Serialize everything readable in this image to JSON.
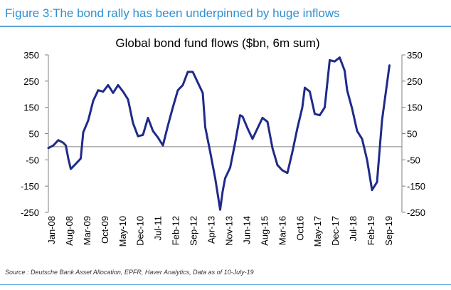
{
  "figure_title": "Figure 3:The bond rally has been underpinned by huge inflows",
  "source_text": "Source : Deutsche Bank Asset Allocation, EPFR, Haver Analytics, Data as of 10-July-19",
  "colors": {
    "figure_title": "#2e8fd0",
    "rules": "#5aa7dc",
    "series_line": "#1f2a8a"
  },
  "chart_data": {
    "type": "line",
    "title": "Global bond fund flows ($bn, 6m sum)",
    "xlabel": "",
    "ylabel": "",
    "ylim": [
      -250,
      350
    ],
    "yticks": [
      350,
      250,
      150,
      50,
      -50,
      -150,
      -250
    ],
    "x_tick_labels": [
      "Jan-08",
      "Aug-08",
      "Mar-09",
      "Oct-09",
      "May-10",
      "Dec-10",
      "Jul-11",
      "Feb-12",
      "Sep-12",
      "Apr-13",
      "Nov-13",
      "Jun-14",
      "Aug-15",
      "Mar-16",
      "Oct16",
      "May-17",
      "Dec-17",
      "Jul-18",
      "Feb-19",
      "Sep-19"
    ],
    "grid": false,
    "zero_line": true,
    "axes": "left and right y-axes with identical scale",
    "series": [
      {
        "values": [
          {
            "x": "2008-01",
            "y": -5
          },
          {
            "x": "2008-03",
            "y": 5
          },
          {
            "x": "2008-05",
            "y": 25
          },
          {
            "x": "2008-07",
            "y": 15
          },
          {
            "x": "2008-08",
            "y": 5
          },
          {
            "x": "2008-09",
            "y": -45
          },
          {
            "x": "2008-10",
            "y": -85
          },
          {
            "x": "2008-12",
            "y": -65
          },
          {
            "x": "2009-02",
            "y": -45
          },
          {
            "x": "2009-03",
            "y": 55
          },
          {
            "x": "2009-05",
            "y": 100
          },
          {
            "x": "2009-07",
            "y": 175
          },
          {
            "x": "2009-09",
            "y": 215
          },
          {
            "x": "2009-11",
            "y": 210
          },
          {
            "x": "2010-01",
            "y": 235
          },
          {
            "x": "2010-03",
            "y": 205
          },
          {
            "x": "2010-05",
            "y": 235
          },
          {
            "x": "2010-07",
            "y": 210
          },
          {
            "x": "2010-09",
            "y": 180
          },
          {
            "x": "2010-11",
            "y": 90
          },
          {
            "x": "2011-01",
            "y": 40
          },
          {
            "x": "2011-03",
            "y": 45
          },
          {
            "x": "2011-05",
            "y": 110
          },
          {
            "x": "2011-07",
            "y": 60
          },
          {
            "x": "2011-09",
            "y": 35
          },
          {
            "x": "2011-11",
            "y": 5
          },
          {
            "x": "2012-01",
            "y": 80
          },
          {
            "x": "2012-03",
            "y": 150
          },
          {
            "x": "2012-05",
            "y": 215
          },
          {
            "x": "2012-07",
            "y": 235
          },
          {
            "x": "2012-09",
            "y": 285
          },
          {
            "x": "2012-11",
            "y": 285
          },
          {
            "x": "2013-01",
            "y": 245
          },
          {
            "x": "2013-03",
            "y": 205
          },
          {
            "x": "2013-04",
            "y": 75
          },
          {
            "x": "2013-06",
            "y": -20
          },
          {
            "x": "2013-08",
            "y": -120
          },
          {
            "x": "2013-10",
            "y": -240
          },
          {
            "x": "2013-11",
            "y": -170
          },
          {
            "x": "2013-12",
            "y": -120
          },
          {
            "x": "2014-02",
            "y": -80
          },
          {
            "x": "2014-04",
            "y": 15
          },
          {
            "x": "2014-06",
            "y": 120
          },
          {
            "x": "2014-07",
            "y": 115
          },
          {
            "x": "2014-09",
            "y": 70
          },
          {
            "x": "2014-11",
            "y": 30
          },
          {
            "x": "2015-01",
            "y": 70
          },
          {
            "x": "2015-03",
            "y": 110
          },
          {
            "x": "2015-05",
            "y": 95
          },
          {
            "x": "2015-07",
            "y": -5
          },
          {
            "x": "2015-09",
            "y": -70
          },
          {
            "x": "2015-11",
            "y": -90
          },
          {
            "x": "2016-01",
            "y": -100
          },
          {
            "x": "2016-03",
            "y": -20
          },
          {
            "x": "2016-05",
            "y": 70
          },
          {
            "x": "2016-07",
            "y": 150
          },
          {
            "x": "2016-08",
            "y": 225
          },
          {
            "x": "2016-10",
            "y": 210
          },
          {
            "x": "2016-12",
            "y": 125
          },
          {
            "x": "2017-02",
            "y": 120
          },
          {
            "x": "2017-04",
            "y": 150
          },
          {
            "x": "2017-06",
            "y": 330
          },
          {
            "x": "2017-08",
            "y": 325
          },
          {
            "x": "2017-10",
            "y": 340
          },
          {
            "x": "2017-12",
            "y": 290
          },
          {
            "x": "2018-01",
            "y": 215
          },
          {
            "x": "2018-03",
            "y": 145
          },
          {
            "x": "2018-05",
            "y": 60
          },
          {
            "x": "2018-07",
            "y": 30
          },
          {
            "x": "2018-09",
            "y": -50
          },
          {
            "x": "2018-11",
            "y": -165
          },
          {
            "x": "2019-01",
            "y": -135
          },
          {
            "x": "2019-03",
            "y": 100
          },
          {
            "x": "2019-04",
            "y": 170
          },
          {
            "x": "2019-06",
            "y": 310
          }
        ]
      }
    ]
  }
}
